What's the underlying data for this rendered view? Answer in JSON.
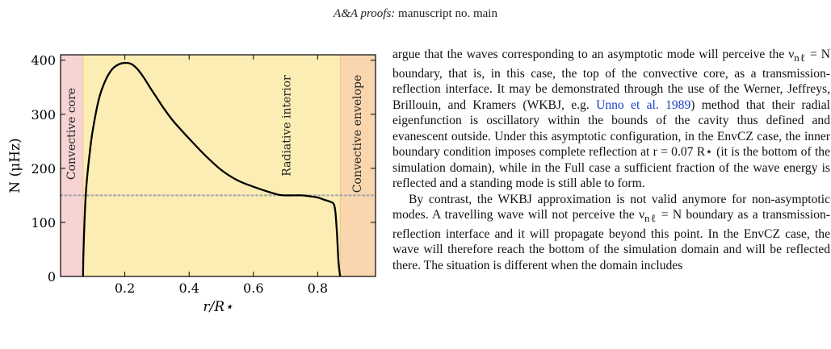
{
  "header": {
    "prefix": "A&A proofs:",
    "suffix": "manuscript no. main"
  },
  "chart_data": {
    "type": "line",
    "xlabel": "r/R⋆",
    "ylabel": "N (μHz)",
    "xlim": [
      0.0,
      0.98
    ],
    "ylim": [
      0,
      410
    ],
    "xticks": [
      0.2,
      0.4,
      0.6,
      0.8
    ],
    "xtick_labels": [
      "0.2",
      "0.4",
      "0.6",
      "0.8"
    ],
    "yticks": [
      0,
      100,
      200,
      300,
      400
    ],
    "ytick_labels": [
      "0",
      "100",
      "200",
      "300",
      "400"
    ],
    "grid": false,
    "reference_line": {
      "y": 150,
      "style": "dotted",
      "color": "#aaaaaa"
    },
    "regions": [
      {
        "label": "Convective core",
        "x0": 0.0,
        "x1": 0.07,
        "color": "#f7d3d3"
      },
      {
        "label": "Radiative interior",
        "x0": 0.07,
        "x1": 0.87,
        "color": "#fbedb4"
      },
      {
        "label": "Convective envelope",
        "x0": 0.87,
        "x1": 0.98,
        "color": "#f9d6ad"
      }
    ],
    "series": [
      {
        "color": "#000000",
        "x": [
          0.07,
          0.071,
          0.075,
          0.08,
          0.09,
          0.1,
          0.12,
          0.14,
          0.16,
          0.18,
          0.2,
          0.22,
          0.24,
          0.26,
          0.28,
          0.3,
          0.32,
          0.35,
          0.4,
          0.45,
          0.5,
          0.55,
          0.6,
          0.65,
          0.68,
          0.7,
          0.72,
          0.75,
          0.78,
          0.8,
          0.82,
          0.84,
          0.85,
          0.855,
          0.86,
          0.865,
          0.87
        ],
        "y": [
          0,
          40,
          110,
          165,
          225,
          270,
          330,
          363,
          383,
          392,
          395,
          393,
          383,
          367,
          348,
          330,
          312,
          288,
          255,
          224,
          197,
          178,
          166,
          156,
          151,
          150,
          150,
          150,
          148,
          146,
          142,
          138,
          134,
          120,
          80,
          25,
          0
        ]
      }
    ]
  },
  "body": {
    "para1_pre": "argue that the waves corresponding to an asymptotic mode will perceive the ν",
    "para1_sub": "nℓ",
    "para1_post": " = N boundary, that is, in this case, the top of the convective core, as a transmission-reflection interface. It may be demonstrated through the use of the Werner, Jeffreys, Brillouin, and Kramers (WKBJ, e.g. ",
    "para1_cite": "Unno et al. 1989",
    "para1_end": ") method that their radial eigenfunction is oscillatory within the bounds of the cavity thus defined and evanescent outside. Under this asymptotic configuration, in the EnvCZ case, the inner boundary condition imposes complete reflection at r = 0.07 R⋆ (it is the bottom of the simulation domain), while in the Full case a sufficient fraction of the wave energy is reflected and a standing mode is still able to form.",
    "para2_pre": "By contrast, the WKBJ approximation is not valid anymore for non-asymptotic modes. A travelling wave will not perceive the ν",
    "para2_sub": "nℓ",
    "para2_post": " = N boundary as a transmission-reflection interface and it will propagate beyond this point. In the EnvCZ case, the wave will therefore reach the bottom of the simulation domain and will be reflected there. The situation is different when the domain includes"
  }
}
